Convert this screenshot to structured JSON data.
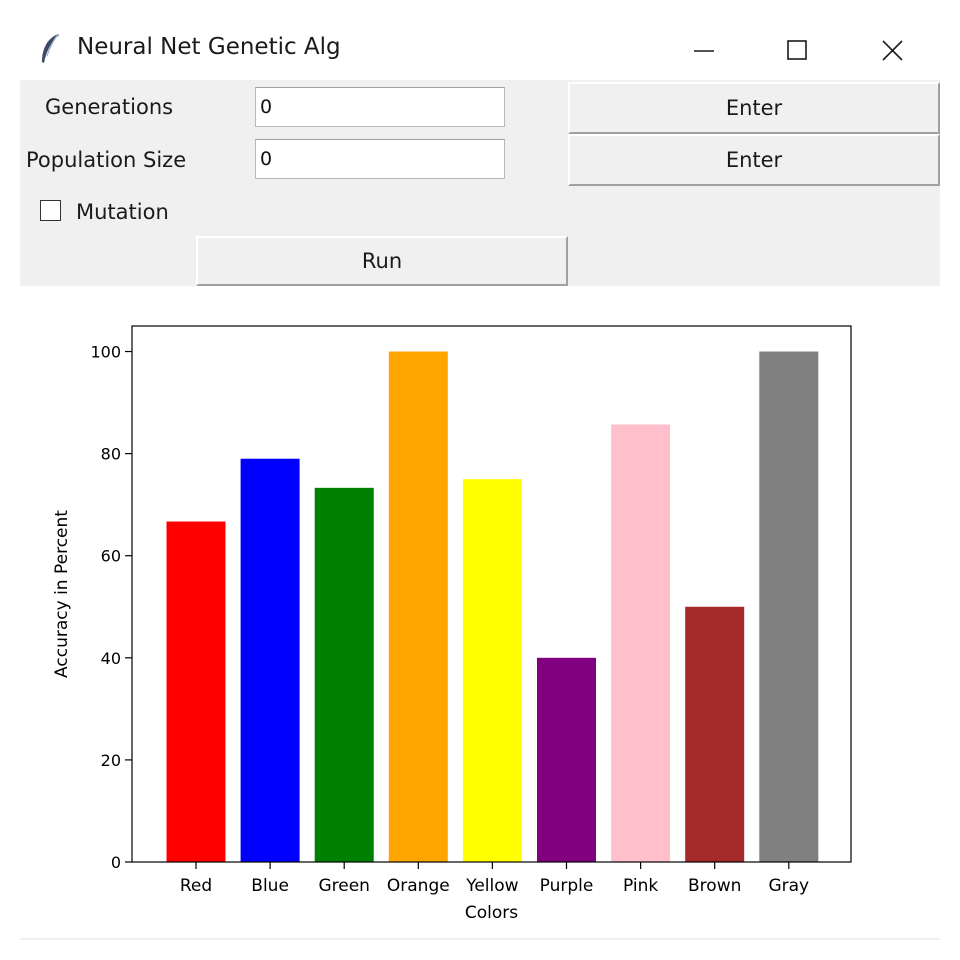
{
  "window": {
    "title": "Neural Net Genetic Alg",
    "icon": "feather-icon"
  },
  "form": {
    "generations_label": "Generations",
    "generations_value": "0",
    "population_label": "Population Size",
    "population_value": "0",
    "enter_label_1": "Enter",
    "enter_label_2": "Enter",
    "mutation_label": "Mutation",
    "mutation_checked": false,
    "run_label": "Run"
  },
  "chart_data": {
    "type": "bar",
    "categories": [
      "Red",
      "Blue",
      "Green",
      "Orange",
      "Yellow",
      "Purple",
      "Pink",
      "Brown",
      "Gray"
    ],
    "values": [
      66.7,
      79.0,
      73.3,
      100,
      75.0,
      40.0,
      85.7,
      50.0,
      100
    ],
    "colors": [
      "#ff0000",
      "#0000ff",
      "#008000",
      "#ffa500",
      "#ffff00",
      "#800080",
      "#ffc0cb",
      "#a52a2a",
      "#808080"
    ],
    "xlabel": "Colors",
    "ylabel": "Accuracy in Percent",
    "yticks": [
      0,
      20,
      40,
      60,
      80,
      100
    ],
    "ylim": [
      0,
      105
    ],
    "grid": false
  }
}
